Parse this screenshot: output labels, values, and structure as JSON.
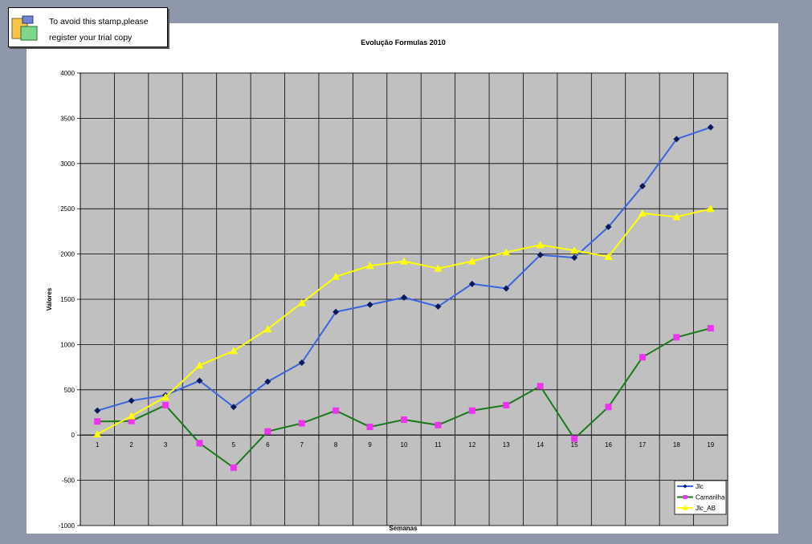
{
  "stamp": {
    "line1": "To avoid this stamp,please",
    "line2": "register your trial copy",
    "icon": "trial-stamp-icon"
  },
  "chart_data": {
    "type": "line",
    "title": "Evolução Formulas 2010",
    "xlabel": "Semanas",
    "ylabel": "Valores",
    "categories": [
      "1",
      "2",
      "3",
      "4",
      "5",
      "6",
      "7",
      "8",
      "9",
      "10",
      "11",
      "12",
      "13",
      "14",
      "15",
      "16",
      "17",
      "18",
      "19"
    ],
    "ylim": [
      -1000,
      4000
    ],
    "yticks": [
      -1000,
      -500,
      0,
      500,
      1000,
      1500,
      2000,
      2500,
      3000,
      3500,
      4000
    ],
    "grid": true,
    "plot_background": "#c0c0c0",
    "legend_position": "bottom-right",
    "series": [
      {
        "name": "Jlc",
        "line_color": "#3a64e0",
        "marker_color": "#0a1a5c",
        "marker": "diamond",
        "values": [
          270,
          380,
          440,
          600,
          310,
          590,
          800,
          1360,
          1440,
          1520,
          1420,
          1670,
          1620,
          1990,
          1960,
          2300,
          2750,
          3270,
          3400
        ]
      },
      {
        "name": "Camarilha",
        "line_color": "#1a7a1a",
        "marker_color": "#ee33ee",
        "marker": "square",
        "values": [
          150,
          155,
          330,
          -90,
          -360,
          40,
          130,
          270,
          90,
          170,
          110,
          270,
          330,
          540,
          -40,
          310,
          860,
          1080,
          1180
        ]
      },
      {
        "name": "Jlc_AB",
        "line_color": "#ffff00",
        "marker_color": "#ffff00",
        "marker": "triangle",
        "values": [
          10,
          210,
          420,
          770,
          930,
          1170,
          1460,
          1750,
          1870,
          1920,
          1840,
          1920,
          2020,
          2100,
          2040,
          1970,
          2450,
          2410,
          2500
        ]
      }
    ]
  }
}
